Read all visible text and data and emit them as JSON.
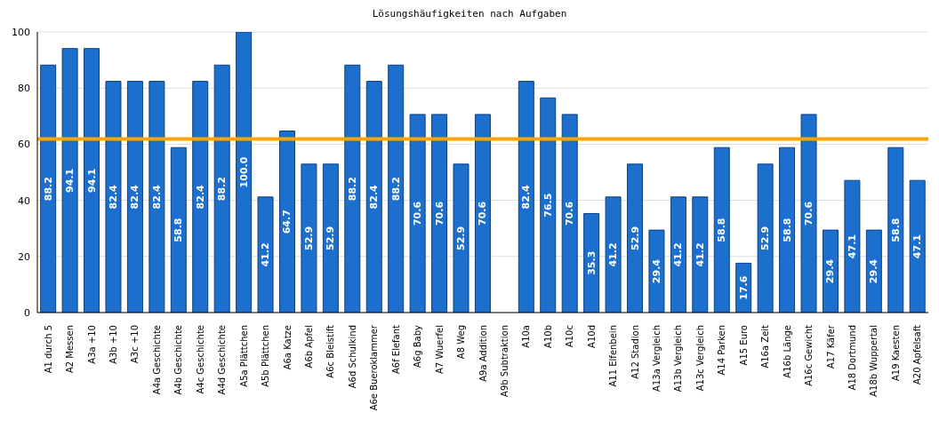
{
  "chart_data": {
    "type": "bar",
    "title": "Lösungshäufigkeiten nach Aufgaben",
    "categories": [
      "A1 durch 5",
      "A2 Messen",
      "A3a +10",
      "A3b +10",
      "A3c +10",
      "A4a Geschichte",
      "A4b Geschichte",
      "A4c Geschichte",
      "A4d Geschichte",
      "A5a Plättchen",
      "A5b Plättchen",
      "A6a Katze",
      "A6b Apfel",
      "A6c Bleistift",
      "A6d Schulkind",
      "A6e Bueroklammer",
      "A6f Elefant",
      "A6g Baby",
      "A7 Wuerfel",
      "A8 Weg",
      "A9a Addition",
      "A9b Subtraktion",
      "A10a",
      "A10b",
      "A10c",
      "A10d",
      "A11 Elfenbein",
      "A12 Stadion",
      "A13a Vergleich",
      "A13b Vergleich",
      "A13c Vergleich",
      "A14 Parken",
      "A15 Euro",
      "A16a Zeit",
      "A16b Länge",
      "A16c Gewicht",
      "A17 Käfer",
      "A18 Dortmund",
      "A18b Wuppertal",
      "A19 Kaesten",
      "A20 Apfelsaft"
    ],
    "values": [
      88.2,
      94.1,
      94.1,
      82.4,
      82.4,
      82.4,
      58.8,
      82.4,
      88.2,
      100.0,
      41.2,
      64.7,
      52.9,
      52.9,
      88.2,
      82.4,
      88.2,
      70.6,
      70.6,
      52.9,
      70.6,
      null,
      82.4,
      76.5,
      70.6,
      35.3,
      41.2,
      52.9,
      29.4,
      41.2,
      41.2,
      58.8,
      17.6,
      52.9,
      58.8,
      70.6,
      29.4,
      47.1,
      29.4,
      58.8,
      47.1
    ],
    "value_labels": [
      "88.2",
      "94.1",
      "94.1",
      "82.4",
      "82.4",
      "82.4",
      "58.8",
      "82.4",
      "88.2",
      "100.0",
      "41.2",
      "64.7",
      "52.9",
      "52.9",
      "88.2",
      "82.4",
      "88.2",
      "70.6",
      "70.6",
      "52.9",
      "70.6",
      null,
      "82.4",
      "76.5",
      "70.6",
      "35.3",
      "41.2",
      "52.9",
      "29.4",
      "41.2",
      "41.2",
      "58.8",
      "17.6",
      "52.9",
      "58.8",
      "70.6",
      "29.4",
      "47.1",
      "29.4",
      "58.8",
      "47.1"
    ],
    "color": "#1c6fcc",
    "ylim": [
      0,
      100
    ],
    "yticks": [
      0,
      20,
      40,
      60,
      80,
      100
    ],
    "grid": "y",
    "ref_lines": [
      {
        "axis": "y",
        "value": 61.9,
        "color": "#ffa500"
      }
    ]
  }
}
